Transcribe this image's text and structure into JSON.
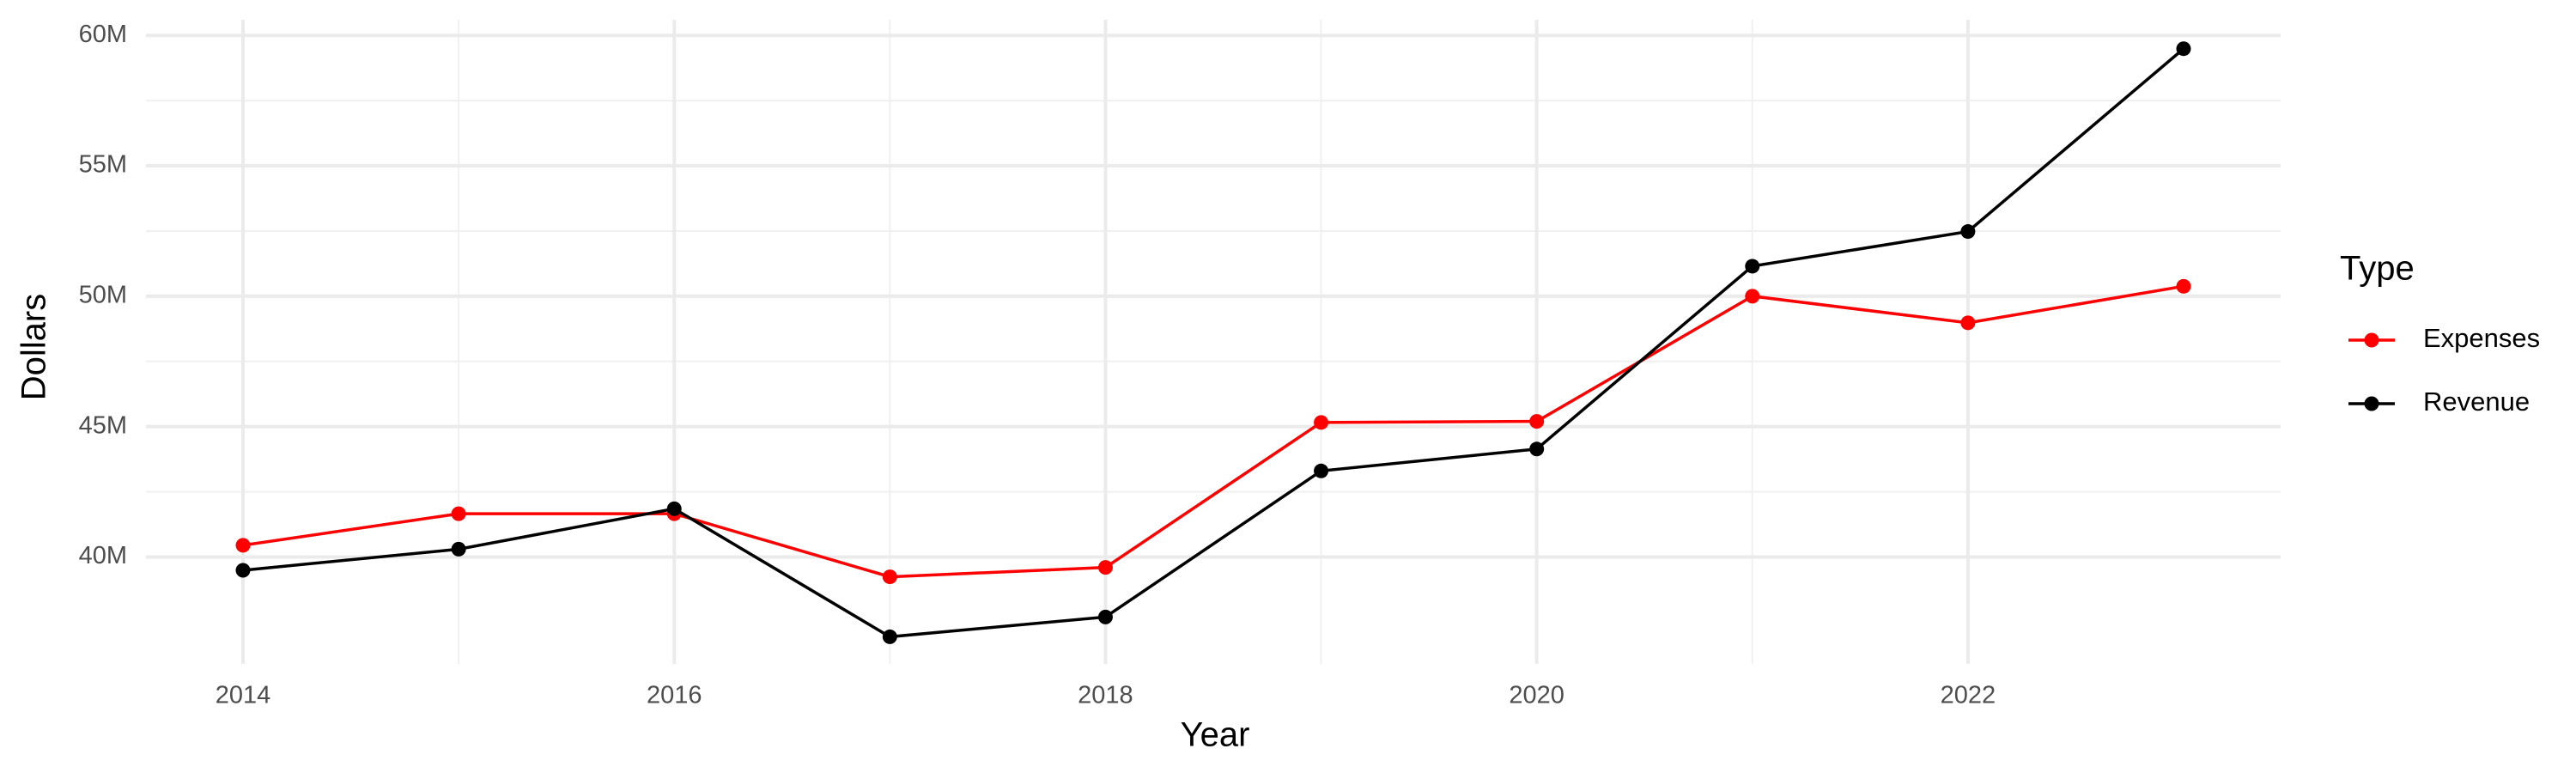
{
  "chart_data": {
    "type": "line",
    "x_label": "Year",
    "y_label": "Dollars",
    "legend_title": "Type",
    "legend_position": "right",
    "grid": true,
    "x": [
      2014,
      2015,
      2016,
      2017,
      2018,
      2019,
      2020,
      2021,
      2022,
      2023
    ],
    "series": [
      {
        "name": "Expenses",
        "color": "#ff0000",
        "values": [
          40450000,
          41660000,
          41660000,
          39240000,
          39600000,
          45160000,
          45200000,
          50000000,
          48980000,
          50380000
        ]
      },
      {
        "name": "Revenue",
        "color": "#000000",
        "values": [
          39490000,
          40300000,
          41850000,
          36940000,
          37700000,
          43300000,
          44140000,
          51150000,
          52480000,
          59490000
        ]
      }
    ],
    "xlim": [
      2013.55,
      2023.45
    ],
    "xticks": [
      2014,
      2016,
      2018,
      2020,
      2022
    ],
    "ylim": [
      35900000,
      60600000
    ],
    "yticks": [
      {
        "value": 40000000,
        "label": "40M"
      },
      {
        "value": 45000000,
        "label": "45M"
      },
      {
        "value": 50000000,
        "label": "50M"
      },
      {
        "value": 55000000,
        "label": "55M"
      },
      {
        "value": 60000000,
        "label": "60M"
      }
    ]
  }
}
